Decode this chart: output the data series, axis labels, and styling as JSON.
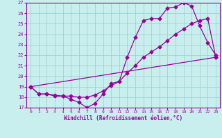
{
  "xlabel": "Windchill (Refroidissement éolien,°C)",
  "xlim": [
    -0.5,
    23.5
  ],
  "ylim": [
    17,
    27
  ],
  "xticks": [
    0,
    1,
    2,
    3,
    4,
    5,
    6,
    7,
    8,
    9,
    10,
    11,
    12,
    13,
    14,
    15,
    16,
    17,
    18,
    19,
    20,
    21,
    22,
    23
  ],
  "yticks": [
    17,
    18,
    19,
    20,
    21,
    22,
    23,
    24,
    25,
    26,
    27
  ],
  "bg_color": "#c8eeee",
  "line_color": "#990099",
  "grid_color": "#99cccc",
  "line1_x": [
    0,
    1,
    2,
    3,
    4,
    5,
    6,
    7,
    8,
    9,
    10,
    11,
    12,
    13,
    14,
    15,
    16,
    17,
    18,
    19,
    20,
    21,
    22,
    23
  ],
  "line1_y": [
    19.0,
    18.3,
    18.3,
    18.2,
    18.1,
    17.8,
    17.5,
    17.0,
    17.4,
    18.3,
    19.3,
    19.5,
    21.8,
    23.7,
    25.3,
    25.5,
    25.5,
    26.5,
    26.6,
    27.0,
    26.7,
    24.8,
    23.2,
    22.0
  ],
  "line2_x": [
    0,
    1,
    2,
    3,
    4,
    5,
    6,
    7,
    8,
    9,
    10,
    11,
    12,
    13,
    14,
    15,
    16,
    17,
    18,
    19,
    20,
    21,
    22,
    23
  ],
  "line2_y": [
    19.0,
    18.3,
    18.3,
    18.1,
    18.1,
    18.1,
    18.0,
    18.0,
    18.2,
    18.6,
    19.1,
    19.5,
    20.3,
    21.0,
    21.8,
    22.3,
    22.8,
    23.4,
    24.0,
    24.5,
    25.0,
    25.3,
    25.5,
    21.8
  ],
  "line3_x": [
    0,
    23
  ],
  "line3_y": [
    19.0,
    21.8
  ]
}
